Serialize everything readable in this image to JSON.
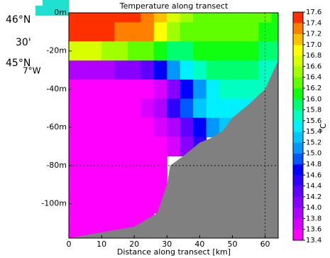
{
  "chart_data": {
    "type": "contour",
    "title": "Temperature along transect",
    "x_label": "Distance along transect [km]",
    "colorbar_label": "°C",
    "map_labels": [
      "46°N",
      "30'",
      "45°N",
      "7°W"
    ],
    "xlim": [
      0,
      64
    ],
    "xticks": [
      0,
      10,
      20,
      30,
      40,
      50,
      60
    ],
    "ylim": [
      -118,
      0
    ],
    "yticks": [
      {
        "value": 0,
        "label": "0m"
      },
      {
        "value": -20,
        "label": "-20m"
      },
      {
        "value": -40,
        "label": "-40m"
      },
      {
        "value": -60,
        "label": "-60m"
      },
      {
        "value": -80,
        "label": "-80m"
      },
      {
        "value": -100,
        "label": "-100m"
      }
    ],
    "x": [
      0,
      4,
      8,
      12,
      16,
      20,
      24,
      28,
      32,
      36,
      40,
      44,
      48,
      52,
      56,
      60,
      64
    ],
    "depths": [
      0,
      -10,
      -20,
      -30,
      -40,
      -50,
      -60,
      -70,
      -80,
      -90,
      -100,
      -110
    ],
    "values": [
      [
        17.4,
        17.4,
        17.5,
        17.5,
        17.4,
        17.4,
        17.3,
        17.0,
        16.6,
        16.4,
        16.2,
        16.2,
        16.2,
        16.2,
        16.3,
        16.2,
        16.0
      ],
      [
        17.4,
        17.4,
        17.4,
        17.4,
        17.3,
        17.3,
        17.2,
        16.8,
        16.4,
        16.2,
        16.2,
        16.2,
        16.2,
        16.2,
        16.2,
        16.0,
        16.0
      ],
      [
        16.6,
        16.6,
        16.6,
        16.4,
        16.4,
        16.2,
        16.2,
        16.0,
        15.8,
        15.8,
        16.0,
        16.0,
        16.0,
        16.0,
        16.0,
        15.8,
        15.8
      ],
      [
        13.8,
        13.8,
        13.8,
        13.9,
        14.0,
        14.0,
        14.2,
        14.6,
        15.0,
        15.4,
        15.6,
        15.8,
        15.8,
        15.8,
        15.8,
        15.6,
        15.6
      ],
      [
        13.4,
        13.4,
        13.4,
        13.4,
        13.4,
        13.5,
        13.5,
        13.6,
        14.0,
        14.6,
        15.0,
        15.4,
        15.6,
        15.6,
        15.6,
        15.6,
        15.6
      ],
      [
        13.4,
        13.4,
        13.4,
        13.4,
        13.4,
        13.5,
        13.6,
        13.9,
        14.4,
        14.8,
        15.2,
        15.4,
        15.4,
        15.4,
        15.4,
        15.4,
        null
      ],
      [
        13.4,
        13.4,
        13.4,
        13.4,
        13.4,
        13.4,
        13.5,
        13.6,
        13.8,
        14.2,
        14.6,
        15.0,
        15.2,
        null,
        null,
        null,
        null
      ],
      [
        13.4,
        13.4,
        13.4,
        13.4,
        13.4,
        13.4,
        13.4,
        13.5,
        13.7,
        14.0,
        14.4,
        null,
        null,
        null,
        null,
        null,
        null
      ],
      [
        13.4,
        13.4,
        13.4,
        13.4,
        13.4,
        13.4,
        13.4,
        13.4,
        null,
        null,
        null,
        null,
        null,
        null,
        null,
        null,
        null
      ],
      [
        13.4,
        13.4,
        13.4,
        13.4,
        13.4,
        13.4,
        13.4,
        13.4,
        null,
        null,
        null,
        null,
        null,
        null,
        null,
        null,
        null
      ],
      [
        13.4,
        13.4,
        13.4,
        13.4,
        13.4,
        13.4,
        13.4,
        13.4,
        null,
        null,
        null,
        null,
        null,
        null,
        null,
        null,
        null
      ],
      [
        13.4,
        13.4,
        13.4,
        13.4,
        13.4,
        13.4,
        13.4,
        null,
        null,
        null,
        null,
        null,
        null,
        null,
        null,
        null,
        null
      ]
    ],
    "seafloor_x": [
      0,
      20,
      27,
      30,
      31,
      35,
      40,
      43,
      47,
      50,
      55,
      60,
      64
    ],
    "seafloor_depth": [
      -118,
      -112,
      -105,
      -90,
      -80,
      -75,
      -68,
      -66,
      -62,
      -55,
      -48,
      -40,
      -25
    ],
    "seafloor_color": "#808080",
    "levels": [
      13.4,
      13.6,
      13.8,
      {
        "value": 14.0,
        "label": "14.0"
      },
      14.2,
      14.4,
      14.6,
      14.8,
      {
        "value": 15.0,
        "label": "15.0"
      },
      15.2,
      15.4,
      15.6,
      15.8,
      {
        "value": 16.0,
        "label": "16.0"
      },
      16.2,
      16.4,
      16.6,
      16.8,
      {
        "value": 17.0,
        "label": "17.0"
      },
      17.2,
      17.4,
      17.6
    ],
    "colors": [
      "#ff00ff",
      "#d800ff",
      "#b000ff",
      "#8800ff",
      "#6000ff",
      "#3000ff",
      "#0000ff",
      "#0058ff",
      "#0098ff",
      "#00c8ff",
      "#00f0ff",
      "#00ffc0",
      "#00ff70",
      "#10ff10",
      "#60ff00",
      "#a0ff00",
      "#d8ff00",
      "#ffff00",
      "#ffc000",
      "#ff8000",
      "#ff3000"
    ]
  }
}
